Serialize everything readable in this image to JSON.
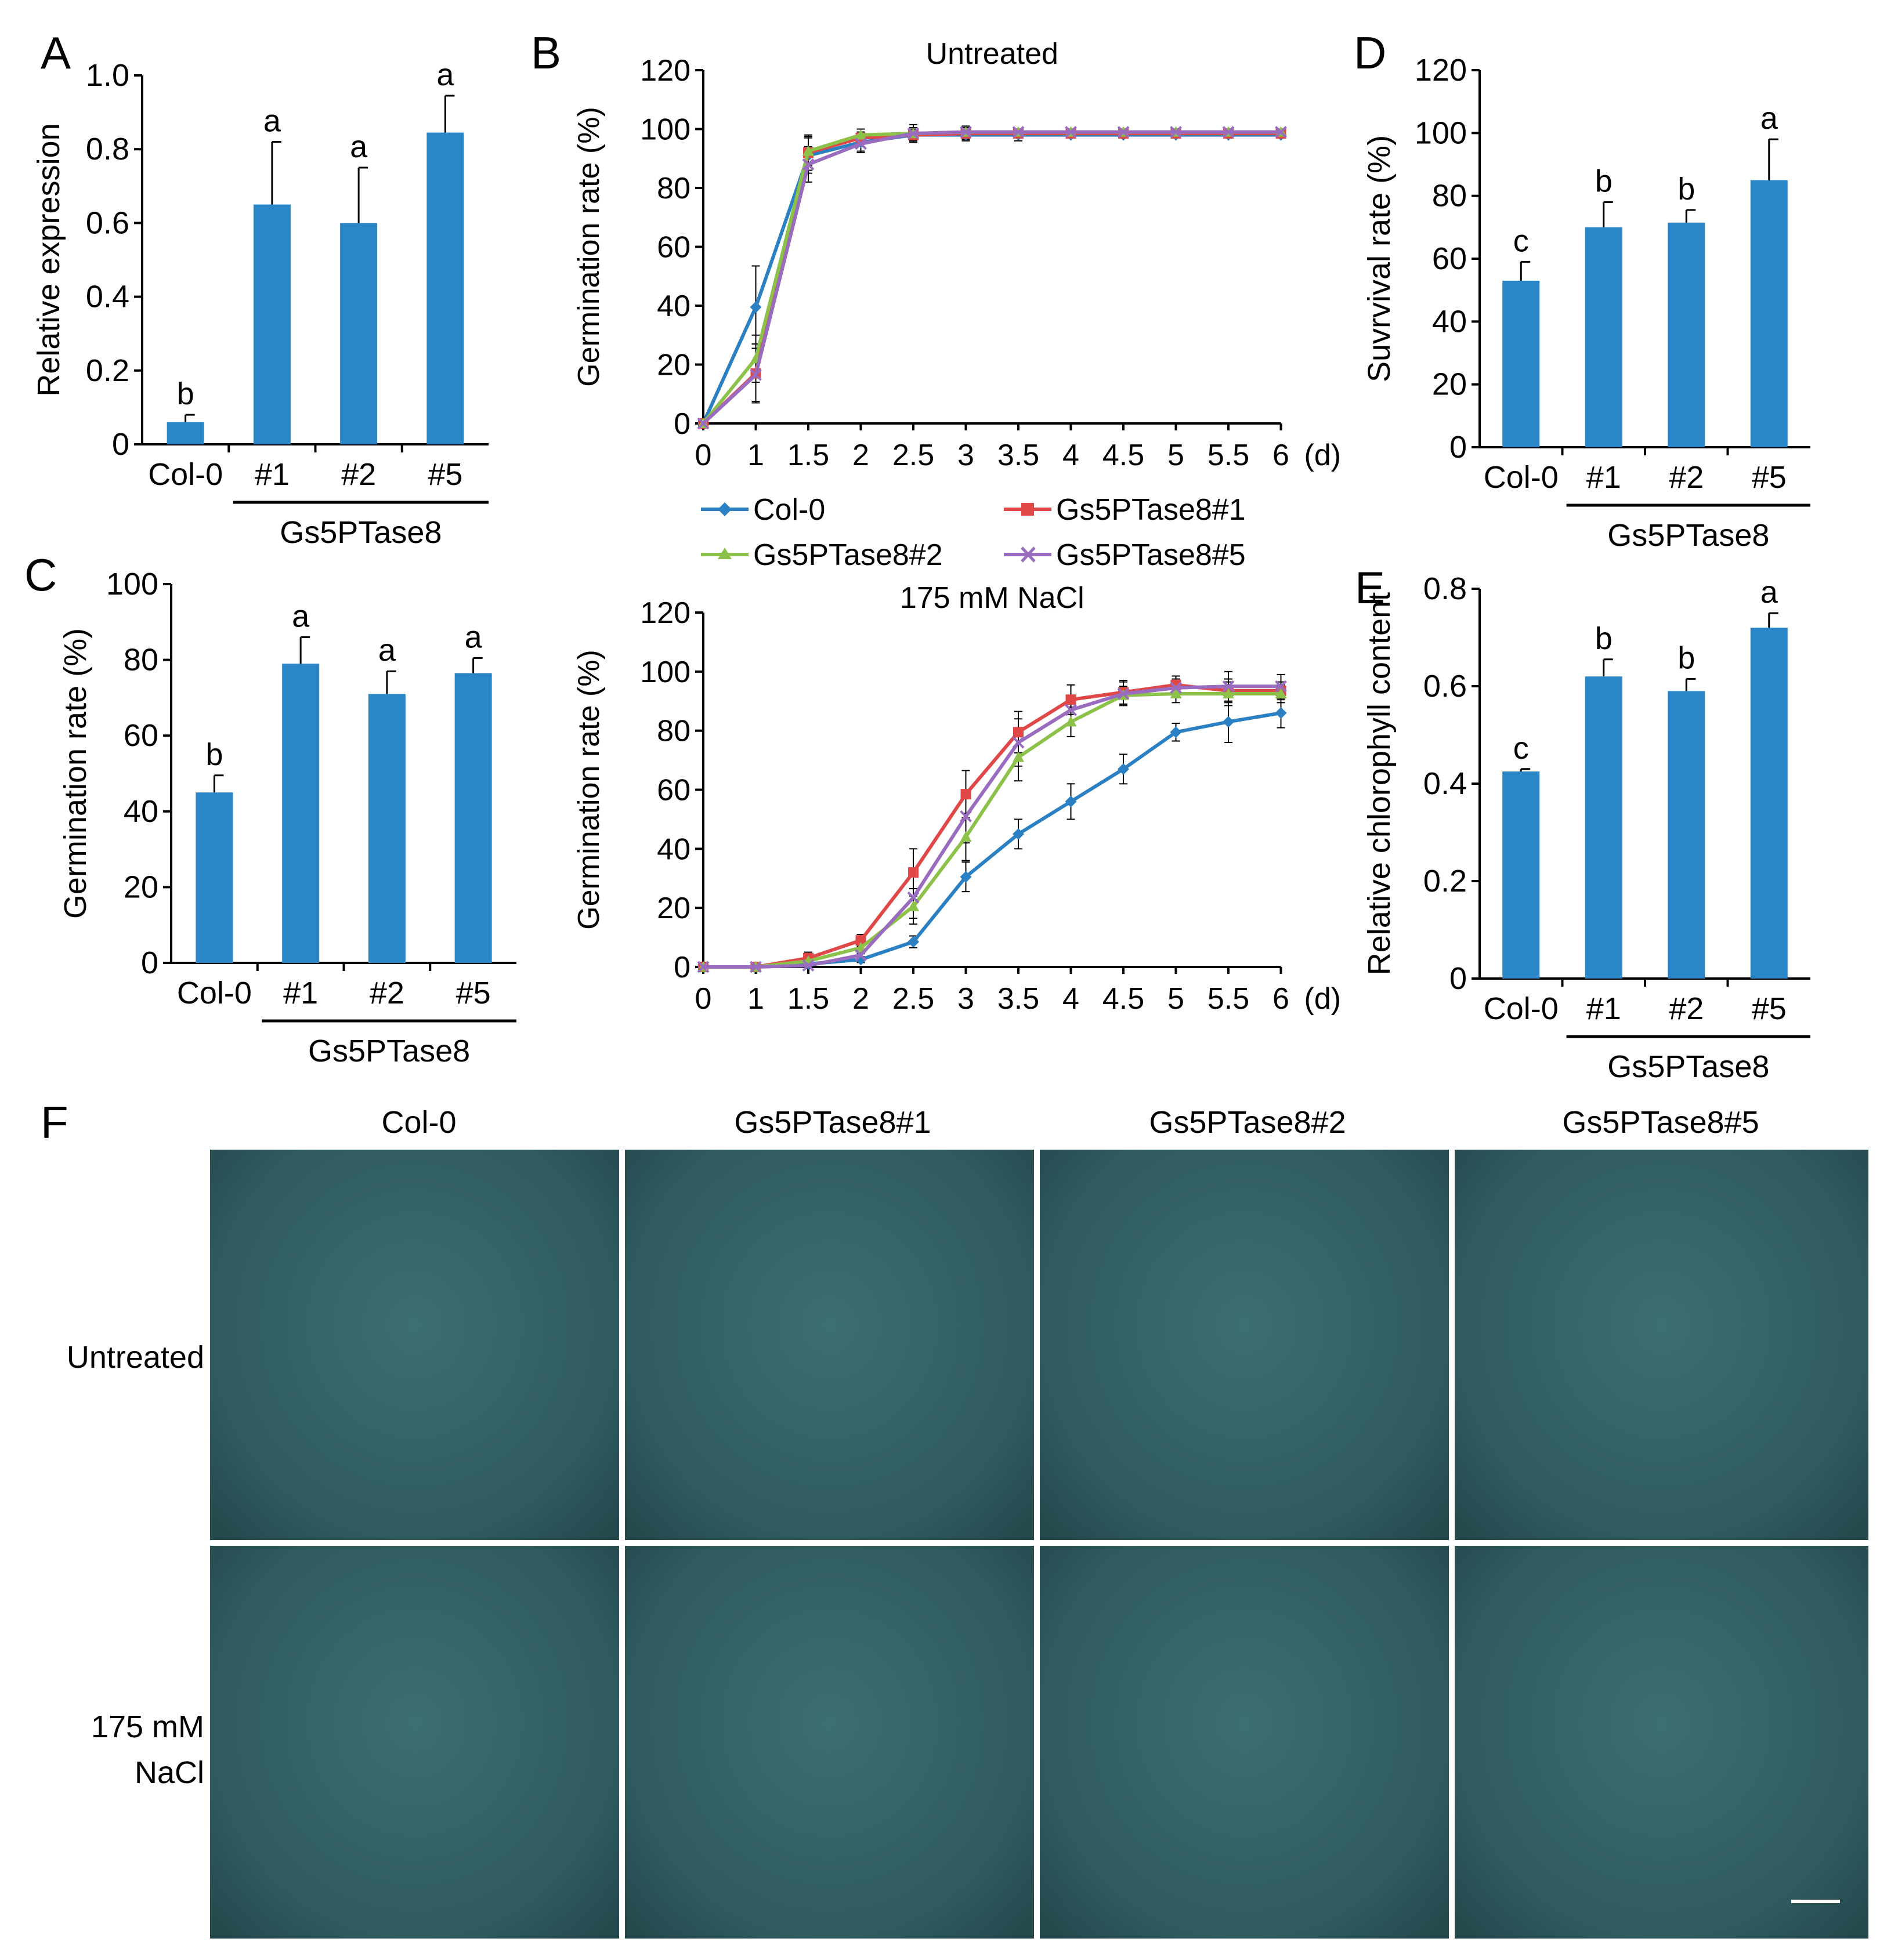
{
  "colors": {
    "bar": "#2a86c6",
    "col0": "#2a80c2",
    "line1": "#e04848",
    "line2": "#8cc14a",
    "line5": "#9a6cc0",
    "photo_bg": "#2f5a5e"
  },
  "panel_labels": {
    "A": "A",
    "B": "B",
    "C": "C",
    "D": "D",
    "E": "E",
    "F": "F"
  },
  "group_label": "Gs5PTase8",
  "axis_unit_days": "(d)",
  "legend": {
    "col0": "Col-0",
    "l1": "Gs5PTase8#1",
    "l2": "Gs5PTase8#2",
    "l5": "Gs5PTase8#5"
  },
  "chart_data": [
    {
      "id": "A",
      "type": "bar",
      "ylabel": "Relative expression",
      "ylim": [
        0,
        1.0
      ],
      "yticks": [
        "0",
        "0.2",
        "0.4",
        "0.6",
        "0.8",
        "1.0"
      ],
      "categories": [
        "Col-0",
        "#1",
        "#2",
        "#5"
      ],
      "values": [
        0.06,
        0.65,
        0.6,
        0.845
      ],
      "errors": [
        0.02,
        0.17,
        0.15,
        0.1
      ],
      "letters": [
        "b",
        "a",
        "a",
        "a"
      ],
      "group_label": "Gs5PTase8"
    },
    {
      "id": "B-untreated",
      "type": "line",
      "title": "Untreated",
      "ylabel": "Germination rate (%)",
      "ylim": [
        0,
        120
      ],
      "yticks": [
        "0",
        "20",
        "40",
        "60",
        "80",
        "100",
        "120"
      ],
      "x": [
        "0",
        "1",
        "1.5",
        "2",
        "2.5",
        "3",
        "3.5",
        "4",
        "4.5",
        "5",
        "5.5",
        "6"
      ],
      "xunit": "(d)",
      "series": [
        {
          "name": "Col-0",
          "values": [
            0,
            39.5,
            91,
            95.5,
            98,
            98,
            98,
            98,
            98,
            98,
            98,
            98
          ],
          "errors": [
            0,
            14,
            6,
            3,
            2,
            2,
            2,
            1,
            1,
            1,
            1,
            1
          ]
        },
        {
          "name": "Gs5PTase8#1",
          "values": [
            0,
            17,
            92,
            97,
            98,
            98.5,
            98.5,
            98.5,
            98.5,
            98.5,
            98.5,
            98.5
          ],
          "errors": [
            0,
            10,
            6,
            2,
            2,
            2,
            1,
            1,
            1,
            1,
            1,
            1
          ]
        },
        {
          "name": "Gs5PTase8#2",
          "values": [
            0,
            22,
            92.5,
            98,
            98.5,
            99,
            99,
            99,
            99,
            99,
            99,
            99
          ],
          "errors": [
            0,
            8,
            5,
            2,
            2,
            2,
            1,
            1,
            1,
            1,
            1,
            1
          ]
        },
        {
          "name": "Gs5PTase8#5",
          "values": [
            0,
            16.5,
            88,
            95,
            98.5,
            99,
            99,
            99,
            99,
            99,
            99,
            99
          ],
          "errors": [
            0,
            9,
            6,
            3,
            3,
            2,
            1,
            1,
            1,
            1,
            1,
            1
          ]
        }
      ]
    },
    {
      "id": "B-nacl",
      "type": "line",
      "title": "175 mM NaCl",
      "ylabel": "Germination rate (%)",
      "ylim": [
        0,
        120
      ],
      "yticks": [
        "0",
        "20",
        "40",
        "60",
        "80",
        "100",
        "120"
      ],
      "x": [
        "0",
        "1",
        "1.5",
        "2",
        "2.5",
        "3",
        "3.5",
        "4",
        "4.5",
        "5",
        "5.5",
        "6"
      ],
      "xunit": "(d)",
      "series": [
        {
          "name": "Col-0",
          "values": [
            0,
            0,
            1,
            2.5,
            8.5,
            30.5,
            45,
            56,
            67,
            79.5,
            83,
            86
          ],
          "errors": [
            0,
            0,
            1,
            1,
            2,
            5,
            5,
            6,
            5,
            3,
            7,
            5
          ]
        },
        {
          "name": "Gs5PTase8#1",
          "values": [
            0,
            0,
            3,
            9,
            32,
            58.5,
            79.5,
            90.5,
            93,
            95.5,
            93.5,
            93.5
          ],
          "errors": [
            0,
            0,
            2,
            2,
            8,
            8,
            7,
            5,
            4,
            3,
            4,
            3
          ]
        },
        {
          "name": "Gs5PTase8#2",
          "values": [
            0,
            0,
            2,
            6.5,
            20.5,
            44,
            71,
            83,
            92,
            92.5,
            92.5,
            92.5
          ],
          "errors": [
            0,
            0,
            2,
            2,
            6,
            8,
            8,
            5,
            3,
            3,
            4,
            3
          ]
        },
        {
          "name": "Gs5PTase8#5",
          "values": [
            0,
            0,
            0.5,
            4,
            23.5,
            51,
            76,
            87,
            92.5,
            94.5,
            95,
            95
          ],
          "errors": [
            0,
            0,
            1,
            2,
            7,
            9,
            8,
            5,
            4,
            3,
            5,
            4
          ]
        }
      ]
    },
    {
      "id": "C",
      "type": "bar",
      "ylabel": "Germination rate (%)",
      "ylim": [
        0,
        100
      ],
      "yticks": [
        "0",
        "20",
        "40",
        "60",
        "80",
        "100"
      ],
      "categories": [
        "Col-0",
        "#1",
        "#2",
        "#5"
      ],
      "values": [
        45,
        79,
        71,
        76.5
      ],
      "errors": [
        4.5,
        7,
        6,
        4
      ],
      "letters": [
        "b",
        "a",
        "a",
        "a"
      ],
      "group_label": "Gs5PTase8"
    },
    {
      "id": "D",
      "type": "bar",
      "ylabel": "Suvrvival  rate (%)",
      "ylim": [
        0,
        120
      ],
      "yticks": [
        "0",
        "20",
        "40",
        "60",
        "80",
        "100",
        "120"
      ],
      "categories": [
        "Col-0",
        "#1",
        "#2",
        "#5"
      ],
      "values": [
        53,
        70,
        71.5,
        85
      ],
      "errors": [
        6,
        8,
        4,
        13
      ],
      "letters": [
        "c",
        "b",
        "b",
        "a"
      ],
      "group_label": "Gs5PTase8"
    },
    {
      "id": "E",
      "type": "bar",
      "ylabel": "Relative chlorophyll content",
      "ylim": [
        0,
        0.8
      ],
      "yticks": [
        "0",
        "0.2",
        "0.4",
        "0.6",
        "0.8"
      ],
      "categories": [
        "Col-0",
        "#1",
        "#2",
        "#5"
      ],
      "values": [
        0.425,
        0.62,
        0.59,
        0.72
      ],
      "errors": [
        0.005,
        0.035,
        0.025,
        0.03
      ],
      "letters": [
        "c",
        "b",
        "b",
        "a"
      ],
      "group_label": "Gs5PTase8"
    }
  ],
  "photo_panel": {
    "columns": [
      "Col-0",
      "Gs5PTase8#1",
      "Gs5PTase8#2",
      "Gs5PTase8#5"
    ],
    "rows": [
      {
        "lines": [
          "Untreated"
        ]
      },
      {
        "lines": [
          "175 mM",
          "NaCl"
        ]
      }
    ]
  }
}
